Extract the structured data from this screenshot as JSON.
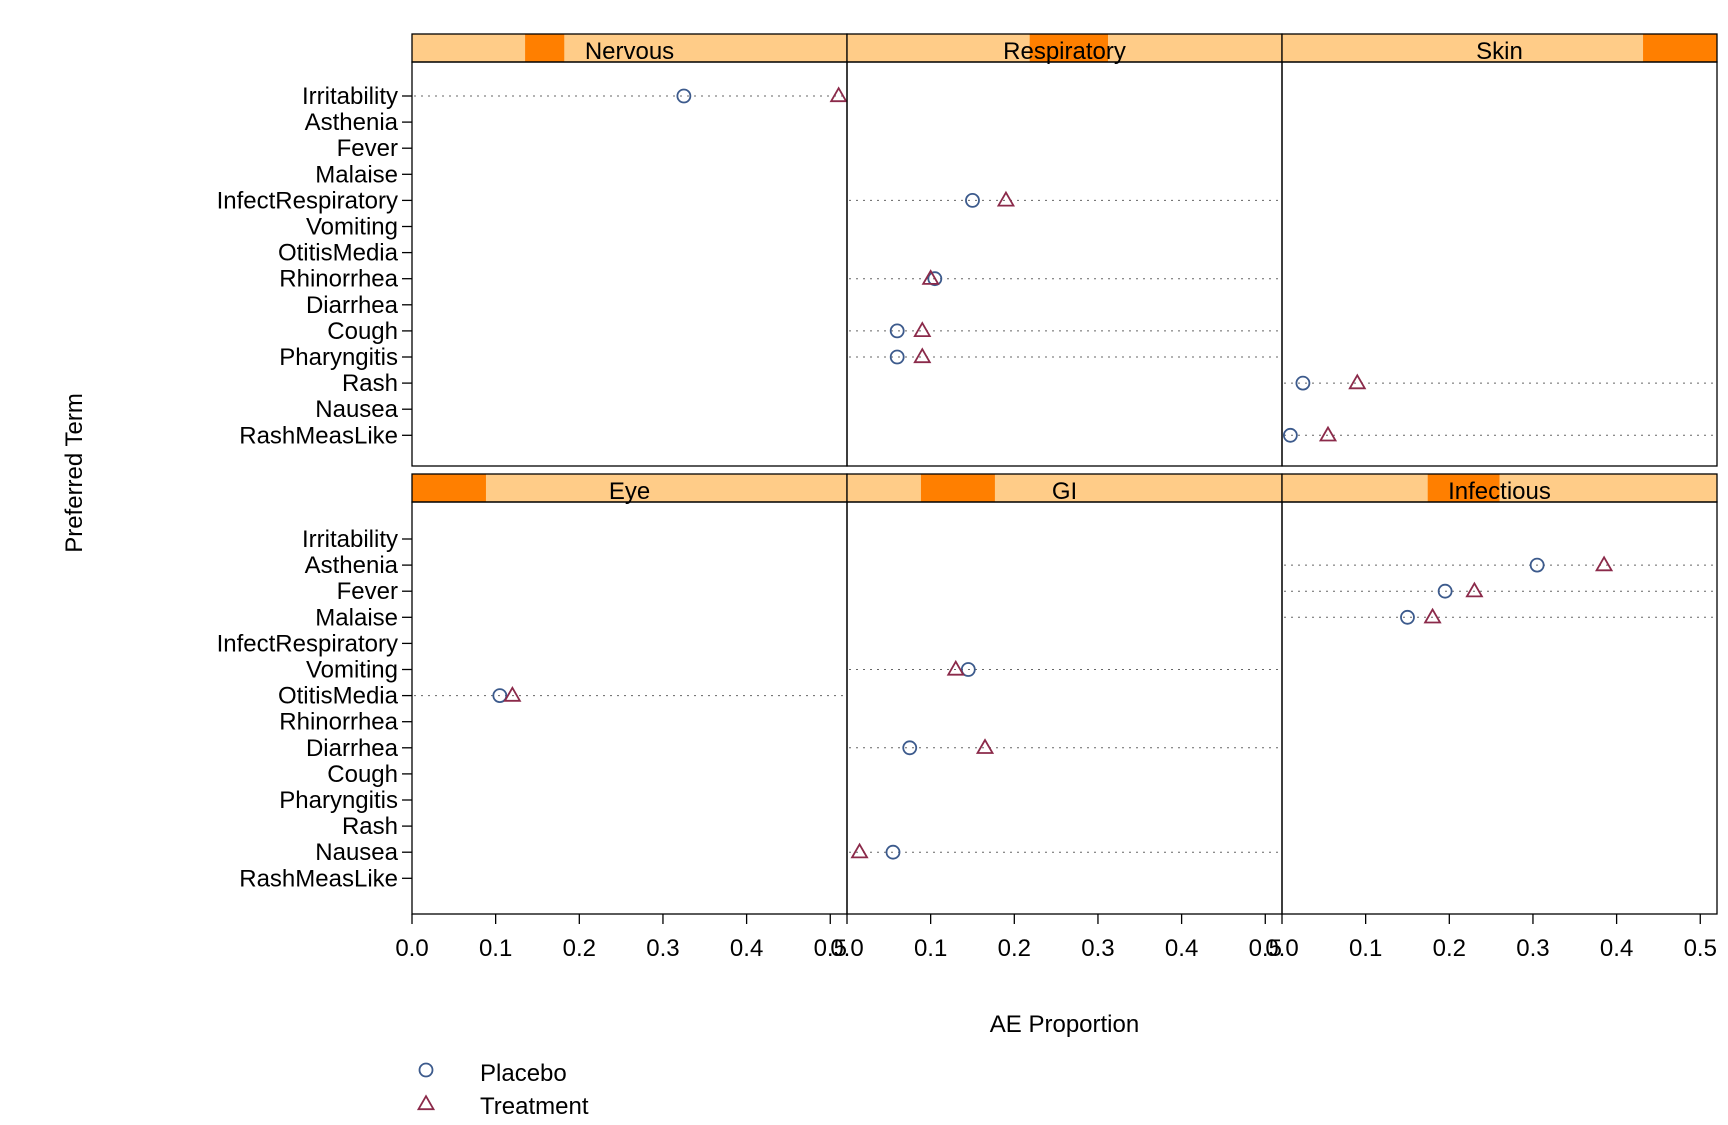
{
  "chart_data": {
    "type": "scatter",
    "subtype": "lattice dotplot, 2 rows x 3 columns of panels",
    "xlabel": "AE Proportion",
    "ylabel": "Preferred Term",
    "xlim": [
      0,
      0.52
    ],
    "x_ticks": [
      0.0,
      0.1,
      0.2,
      0.3,
      0.4,
      0.5
    ],
    "x_tick_labels": [
      "0.0",
      "0.1",
      "0.2",
      "0.3",
      "0.4",
      "0.5"
    ],
    "categories": [
      "Irritability",
      "Asthenia",
      "Fever",
      "Malaise",
      "InfectRespiratory",
      "Vomiting",
      "OtitisMedia",
      "Rhinorrhea",
      "Diarrhea",
      "Cough",
      "Pharyngitis",
      "Rash",
      "Nausea",
      "RashMeasLike"
    ],
    "legend": {
      "placement": "bottom-left",
      "entries": [
        {
          "name": "Placebo",
          "symbol": "circle",
          "color": "#3c5a8c"
        },
        {
          "name": "Treatment",
          "symbol": "triangle",
          "color": "#8b2a4a"
        }
      ]
    },
    "strip_colors": {
      "background": "#ffcc88",
      "highlight": "#ff7f00"
    },
    "panels": [
      {
        "name": "Nervous",
        "row": "top",
        "col": 0,
        "strip_highlight": [
          0.26,
          0.35
        ],
        "points": [
          {
            "term": "Irritability",
            "placebo": 0.325,
            "treatment": 0.51
          }
        ]
      },
      {
        "name": "Respiratory",
        "row": "top",
        "col": 1,
        "strip_highlight": [
          0.42,
          0.6
        ],
        "points": [
          {
            "term": "InfectRespiratory",
            "placebo": 0.15,
            "treatment": 0.19
          },
          {
            "term": "Rhinorrhea",
            "placebo": 0.105,
            "treatment": 0.1
          },
          {
            "term": "Cough",
            "placebo": 0.06,
            "treatment": 0.09
          },
          {
            "term": "Pharyngitis",
            "placebo": 0.06,
            "treatment": 0.09
          }
        ]
      },
      {
        "name": "Skin",
        "row": "top",
        "col": 2,
        "strip_highlight": [
          0.83,
          1.0
        ],
        "points": [
          {
            "term": "Rash",
            "placebo": 0.025,
            "treatment": 0.09
          },
          {
            "term": "RashMeasLike",
            "placebo": 0.01,
            "treatment": 0.055
          }
        ]
      },
      {
        "name": "Eye",
        "row": "bottom",
        "col": 0,
        "strip_highlight": [
          0.0,
          0.17
        ],
        "points": [
          {
            "term": "OtitisMedia",
            "placebo": 0.105,
            "treatment": 0.12
          }
        ]
      },
      {
        "name": "GI",
        "row": "bottom",
        "col": 1,
        "strip_highlight": [
          0.17,
          0.34
        ],
        "points": [
          {
            "term": "Vomiting",
            "placebo": 0.145,
            "treatment": 0.13
          },
          {
            "term": "Diarrhea",
            "placebo": 0.075,
            "treatment": 0.165
          },
          {
            "term": "Nausea",
            "placebo": 0.055,
            "treatment": 0.015
          }
        ]
      },
      {
        "name": "Infectious",
        "row": "bottom",
        "col": 2,
        "strip_highlight": [
          0.335,
          0.5
        ],
        "points": [
          {
            "term": "Asthenia",
            "placebo": 0.305,
            "treatment": 0.385
          },
          {
            "term": "Fever",
            "placebo": 0.195,
            "treatment": 0.23
          },
          {
            "term": "Malaise",
            "placebo": 0.15,
            "treatment": 0.18
          }
        ]
      }
    ]
  }
}
